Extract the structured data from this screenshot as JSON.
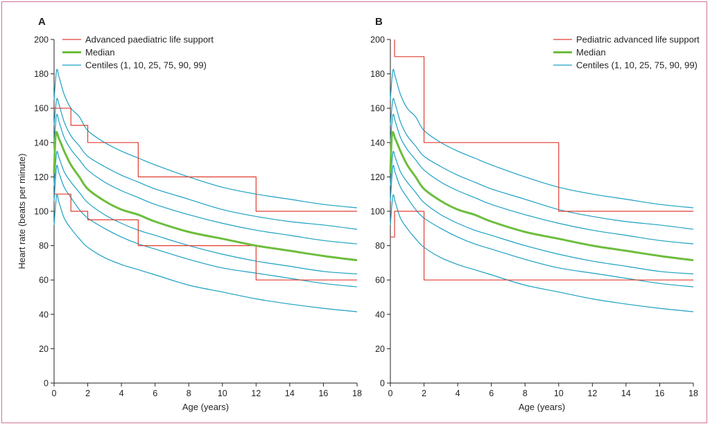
{
  "chart_data": [
    {
      "type": "line",
      "panel": "A",
      "xlabel": "Age (years)",
      "ylabel": "Heart rate (beats per minute)",
      "xlim": [
        0,
        18
      ],
      "ylim": [
        0,
        200
      ],
      "xticks": [
        0,
        2,
        4,
        6,
        8,
        10,
        12,
        14,
        16,
        18
      ],
      "yticks": [
        0,
        20,
        40,
        60,
        80,
        100,
        120,
        140,
        160,
        180,
        200
      ],
      "legend_position": "top-left",
      "series": [
        {
          "name": "Advanced paediatric life support",
          "kind": "reference",
          "color": "#e03c31",
          "x": [
            0,
            1,
            1,
            2,
            2,
            5,
            5,
            12,
            12,
            18
          ],
          "y": [
            160,
            160,
            150,
            150,
            140,
            140,
            120,
            120,
            100,
            100
          ]
        },
        {
          "name": "",
          "kind": "reference",
          "color": "#e03c31",
          "x": [
            0,
            1,
            1,
            2,
            2,
            5,
            5,
            12,
            12,
            18
          ],
          "y": [
            110,
            110,
            100,
            100,
            95,
            95,
            80,
            80,
            60,
            60
          ]
        },
        {
          "name": "Median",
          "kind": "median",
          "color": "#6cbd3d",
          "x": [
            0,
            0.1,
            0.3,
            0.6,
            1,
            1.5,
            2,
            3,
            4,
            5,
            6,
            8,
            10,
            12,
            14,
            16,
            18
          ],
          "y": [
            122,
            145,
            142,
            135,
            127,
            120,
            113,
            106,
            101,
            98,
            94,
            88,
            84,
            80,
            77,
            74,
            71.5
          ]
        },
        {
          "name": "Centiles (1, 10, 25, 75, 90, 99)",
          "kind": "centile",
          "color": "#1ba0c2",
          "x": [
            0,
            0.15,
            0.3,
            0.6,
            1,
            1.5,
            2,
            3,
            4,
            5,
            6,
            8,
            10,
            12,
            14,
            16,
            18
          ],
          "y": [
            165,
            182,
            178,
            168,
            160,
            155,
            147,
            140,
            135,
            131,
            127,
            120,
            114,
            110,
            107,
            104,
            102
          ]
        },
        {
          "name": "",
          "kind": "centile",
          "color": "#1ba0c2",
          "x": [
            0,
            0.15,
            0.3,
            0.6,
            1,
            1.5,
            2,
            3,
            4,
            5,
            6,
            8,
            10,
            12,
            14,
            16,
            18
          ],
          "y": [
            150,
            165,
            162,
            152,
            144,
            138,
            132,
            126,
            121,
            117,
            113,
            107,
            101,
            97,
            94,
            92,
            89.5
          ]
        },
        {
          "name": "",
          "kind": "centile",
          "color": "#1ba0c2",
          "x": [
            0,
            0.15,
            0.3,
            0.6,
            1,
            1.5,
            2,
            3,
            4,
            5,
            6,
            8,
            10,
            12,
            14,
            16,
            18
          ],
          "y": [
            140,
            156,
            152,
            143,
            136,
            130,
            124,
            117,
            112,
            108,
            104,
            98,
            93,
            89,
            86,
            83,
            81
          ]
        },
        {
          "name": "",
          "kind": "centile",
          "color": "#1ba0c2",
          "x": [
            0,
            0.15,
            0.3,
            0.6,
            1,
            1.5,
            2,
            3,
            4,
            5,
            6,
            8,
            10,
            12,
            14,
            16,
            18
          ],
          "y": [
            115,
            134,
            131,
            123,
            117,
            111,
            105,
            98,
            93,
            89,
            86,
            80,
            75,
            71,
            68,
            65,
            63.5
          ]
        },
        {
          "name": "",
          "kind": "centile",
          "color": "#1ba0c2",
          "x": [
            0,
            0.15,
            0.3,
            0.6,
            1,
            1.5,
            2,
            3,
            4,
            5,
            6,
            8,
            10,
            12,
            14,
            16,
            18
          ],
          "y": [
            106,
            126,
            122,
            114,
            108,
            101,
            96,
            90,
            85,
            81,
            78,
            72,
            67,
            64,
            61,
            58,
            56
          ]
        },
        {
          "name": "",
          "kind": "centile",
          "color": "#1ba0c2",
          "x": [
            0,
            0.15,
            0.3,
            0.6,
            1,
            1.5,
            2,
            3,
            4,
            5,
            6,
            8,
            10,
            12,
            14,
            16,
            18
          ],
          "y": [
            92,
            109,
            105,
            96,
            90,
            84,
            79,
            73,
            69,
            66,
            63,
            57,
            53,
            49,
            46,
            43.5,
            41.5
          ]
        }
      ]
    },
    {
      "type": "line",
      "panel": "B",
      "xlabel": "Age (years)",
      "ylabel": "",
      "xlim": [
        0,
        18
      ],
      "ylim": [
        0,
        200
      ],
      "xticks": [
        0,
        2,
        4,
        6,
        8,
        10,
        12,
        14,
        16,
        18
      ],
      "yticks": [
        0,
        20,
        40,
        60,
        80,
        100,
        120,
        140,
        160,
        180,
        200
      ],
      "legend_position": "top-right",
      "series": [
        {
          "name": "Pediatric advanced life support",
          "kind": "reference",
          "color": "#e03c31",
          "x": [
            0.25,
            0.25,
            2,
            2,
            10,
            10,
            18
          ],
          "y": [
            200,
            190,
            190,
            140,
            140,
            100,
            100
          ]
        },
        {
          "name": "",
          "kind": "reference",
          "color": "#e03c31",
          "x": [
            0,
            0.25,
            0.25,
            2,
            2,
            18
          ],
          "y": [
            85,
            85,
            100,
            100,
            60,
            60
          ]
        },
        {
          "name": "Median",
          "kind": "median",
          "color": "#6cbd3d",
          "x": [
            0,
            0.1,
            0.3,
            0.6,
            1,
            1.5,
            2,
            3,
            4,
            5,
            6,
            8,
            10,
            12,
            14,
            16,
            18
          ],
          "y": [
            122,
            145,
            142,
            135,
            127,
            120,
            113,
            106,
            101,
            98,
            94,
            88,
            84,
            80,
            77,
            74,
            71.5
          ]
        },
        {
          "name": "Centiles (1, 10, 25, 75, 90, 99)",
          "kind": "centile",
          "color": "#1ba0c2",
          "x": [
            0,
            0.15,
            0.3,
            0.6,
            1,
            1.5,
            2,
            3,
            4,
            5,
            6,
            8,
            10,
            12,
            14,
            16,
            18
          ],
          "y": [
            165,
            182,
            178,
            168,
            160,
            155,
            147,
            140,
            135,
            131,
            127,
            120,
            114,
            110,
            107,
            104,
            102
          ]
        },
        {
          "name": "",
          "kind": "centile",
          "color": "#1ba0c2",
          "x": [
            0,
            0.15,
            0.3,
            0.6,
            1,
            1.5,
            2,
            3,
            4,
            5,
            6,
            8,
            10,
            12,
            14,
            16,
            18
          ],
          "y": [
            150,
            165,
            162,
            152,
            144,
            138,
            132,
            126,
            121,
            117,
            113,
            107,
            101,
            97,
            94,
            92,
            89.5
          ]
        },
        {
          "name": "",
          "kind": "centile",
          "color": "#1ba0c2",
          "x": [
            0,
            0.15,
            0.3,
            0.6,
            1,
            1.5,
            2,
            3,
            4,
            5,
            6,
            8,
            10,
            12,
            14,
            16,
            18
          ],
          "y": [
            140,
            156,
            152,
            143,
            136,
            130,
            124,
            117,
            112,
            108,
            104,
            98,
            93,
            89,
            86,
            83,
            81
          ]
        },
        {
          "name": "",
          "kind": "centile",
          "color": "#1ba0c2",
          "x": [
            0,
            0.15,
            0.3,
            0.6,
            1,
            1.5,
            2,
            3,
            4,
            5,
            6,
            8,
            10,
            12,
            14,
            16,
            18
          ],
          "y": [
            115,
            134,
            131,
            123,
            117,
            111,
            105,
            98,
            93,
            89,
            86,
            80,
            75,
            71,
            68,
            65,
            63.5
          ]
        },
        {
          "name": "",
          "kind": "centile",
          "color": "#1ba0c2",
          "x": [
            0,
            0.15,
            0.3,
            0.6,
            1,
            1.5,
            2,
            3,
            4,
            5,
            6,
            8,
            10,
            12,
            14,
            16,
            18
          ],
          "y": [
            106,
            126,
            122,
            114,
            108,
            101,
            96,
            90,
            85,
            81,
            78,
            72,
            67,
            64,
            61,
            58,
            56
          ]
        },
        {
          "name": "",
          "kind": "centile",
          "color": "#1ba0c2",
          "x": [
            0,
            0.15,
            0.3,
            0.6,
            1,
            1.5,
            2,
            3,
            4,
            5,
            6,
            8,
            10,
            12,
            14,
            16,
            18
          ],
          "y": [
            92,
            109,
            105,
            96,
            90,
            84,
            79,
            73,
            69,
            66,
            63,
            57,
            53,
            49,
            46,
            43.5,
            41.5
          ]
        }
      ]
    }
  ]
}
